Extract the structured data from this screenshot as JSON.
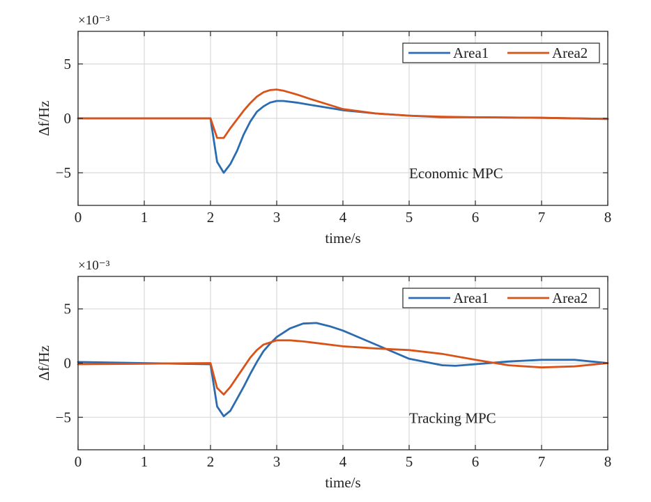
{
  "chart_data": [
    {
      "type": "line",
      "xlabel": "time/s",
      "ylabel": "Δf/Hz",
      "y_scale_label": "×10⁻³",
      "annotation": "Economic MPC",
      "xlim": [
        0,
        8
      ],
      "ylim": [
        -8,
        8
      ],
      "xticks": [
        "0",
        "1",
        "2",
        "3",
        "4",
        "5",
        "6",
        "7",
        "8"
      ],
      "yticks": [
        "-5",
        "0",
        "5"
      ],
      "grid": true,
      "legend_position": "top-right",
      "series": [
        {
          "name": "Area1",
          "color": "#2b6cb0",
          "x": [
            0,
            1,
            2,
            2.1,
            2.2,
            2.3,
            2.4,
            2.5,
            2.6,
            2.7,
            2.8,
            2.9,
            3.0,
            3.1,
            3.3,
            3.5,
            4.0,
            4.5,
            5.0,
            5.5,
            6.0,
            7.0,
            8.0
          ],
          "y": [
            0,
            0,
            0,
            -4.0,
            -5.0,
            -4.2,
            -3.0,
            -1.5,
            -0.3,
            0.6,
            1.1,
            1.45,
            1.6,
            1.6,
            1.45,
            1.25,
            0.75,
            0.45,
            0.25,
            0.1,
            0.1,
            0.05,
            -0.05
          ]
        },
        {
          "name": "Area2",
          "color": "#d95319",
          "x": [
            0,
            1,
            2,
            2.1,
            2.2,
            2.3,
            2.4,
            2.5,
            2.6,
            2.7,
            2.8,
            2.9,
            3.0,
            3.1,
            3.3,
            3.5,
            4.0,
            4.5,
            5.0,
            5.5,
            6.0,
            7.0,
            8.0
          ],
          "y": [
            0,
            0,
            0,
            -1.8,
            -1.8,
            -0.9,
            -0.1,
            0.7,
            1.4,
            2.0,
            2.4,
            2.6,
            2.65,
            2.55,
            2.2,
            1.8,
            0.85,
            0.45,
            0.25,
            0.15,
            0.1,
            0.05,
            -0.05
          ]
        }
      ]
    },
    {
      "type": "line",
      "xlabel": "time/s",
      "ylabel": "Δf/Hz",
      "y_scale_label": "×10⁻³",
      "annotation": "Tracking MPC",
      "xlim": [
        0,
        8
      ],
      "ylim": [
        -8,
        8
      ],
      "xticks": [
        "0",
        "1",
        "2",
        "3",
        "4",
        "5",
        "6",
        "7",
        "8"
      ],
      "yticks": [
        "-5",
        "0",
        "5"
      ],
      "grid": true,
      "legend_position": "top-right",
      "series": [
        {
          "name": "Area1",
          "color": "#2b6cb0",
          "x": [
            0,
            1,
            2,
            2.1,
            2.2,
            2.3,
            2.4,
            2.5,
            2.6,
            2.7,
            2.8,
            2.9,
            3.0,
            3.2,
            3.4,
            3.6,
            3.8,
            4.0,
            4.5,
            5.0,
            5.5,
            5.7,
            6.0,
            6.5,
            7.0,
            7.5,
            8.0
          ],
          "y": [
            0.1,
            0,
            -0.1,
            -4.0,
            -4.9,
            -4.4,
            -3.3,
            -2.2,
            -1.0,
            0.1,
            1.1,
            1.8,
            2.4,
            3.2,
            3.65,
            3.7,
            3.4,
            3.0,
            1.7,
            0.4,
            -0.2,
            -0.25,
            -0.1,
            0.15,
            0.3,
            0.3,
            0.0
          ]
        },
        {
          "name": "Area2",
          "color": "#d95319",
          "x": [
            0,
            1,
            2,
            2.1,
            2.2,
            2.3,
            2.4,
            2.5,
            2.6,
            2.7,
            2.8,
            3.0,
            3.2,
            3.4,
            3.6,
            4.0,
            4.5,
            5.0,
            5.5,
            6.0,
            6.5,
            7.0,
            7.5,
            8.0
          ],
          "y": [
            -0.1,
            -0.05,
            0,
            -2.3,
            -2.9,
            -2.2,
            -1.3,
            -0.4,
            0.5,
            1.2,
            1.7,
            2.1,
            2.1,
            2.0,
            1.85,
            1.55,
            1.35,
            1.2,
            0.85,
            0.3,
            -0.2,
            -0.4,
            -0.3,
            0.0
          ]
        }
      ]
    }
  ]
}
